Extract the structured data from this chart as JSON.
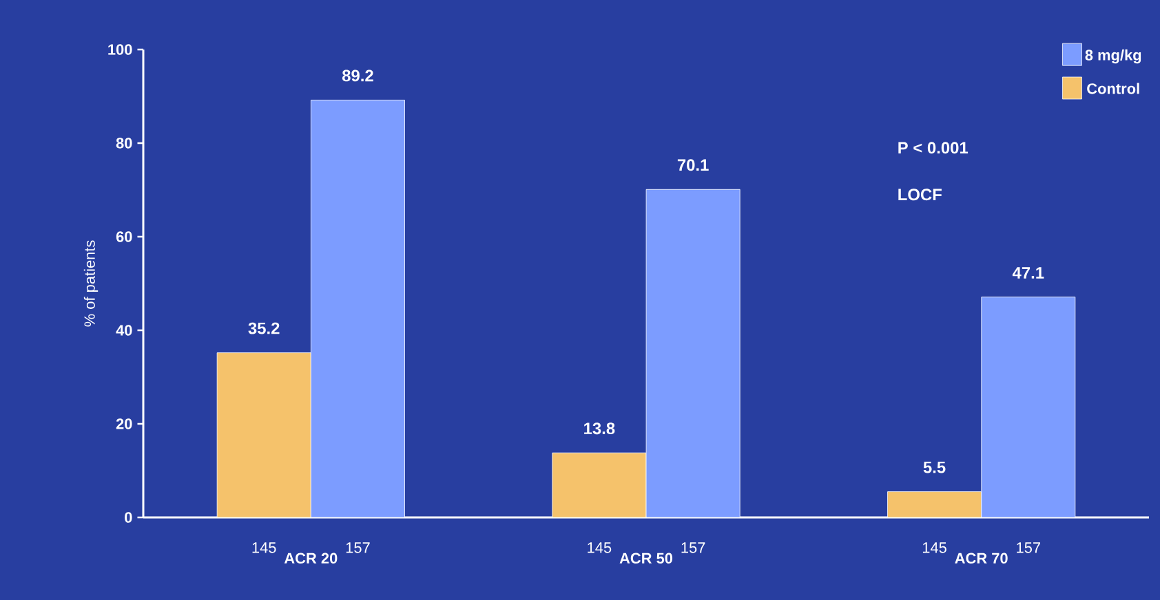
{
  "chart_data": {
    "type": "bar",
    "ylabel": "% of patients",
    "categories": [
      "ACR 20",
      "ACR 50",
      "ACR 70"
    ],
    "series": [
      {
        "name": "Control",
        "color": "#f5c26b",
        "values": [
          35.2,
          13.8,
          5.5
        ]
      },
      {
        "name": "8 mg/kg",
        "color": "#7c9cff",
        "values": [
          89.2,
          70.1,
          47.1
        ]
      }
    ],
    "ylim": [
      0,
      100
    ],
    "yticks": [
      0,
      20,
      40,
      60,
      80,
      100
    ],
    "data_labels": true,
    "grid": false,
    "legend": "top right",
    "annotations": [
      "P < 0.001",
      "LOCF",
      "145",
      "157",
      "145",
      "157",
      "145",
      "157"
    ]
  }
}
